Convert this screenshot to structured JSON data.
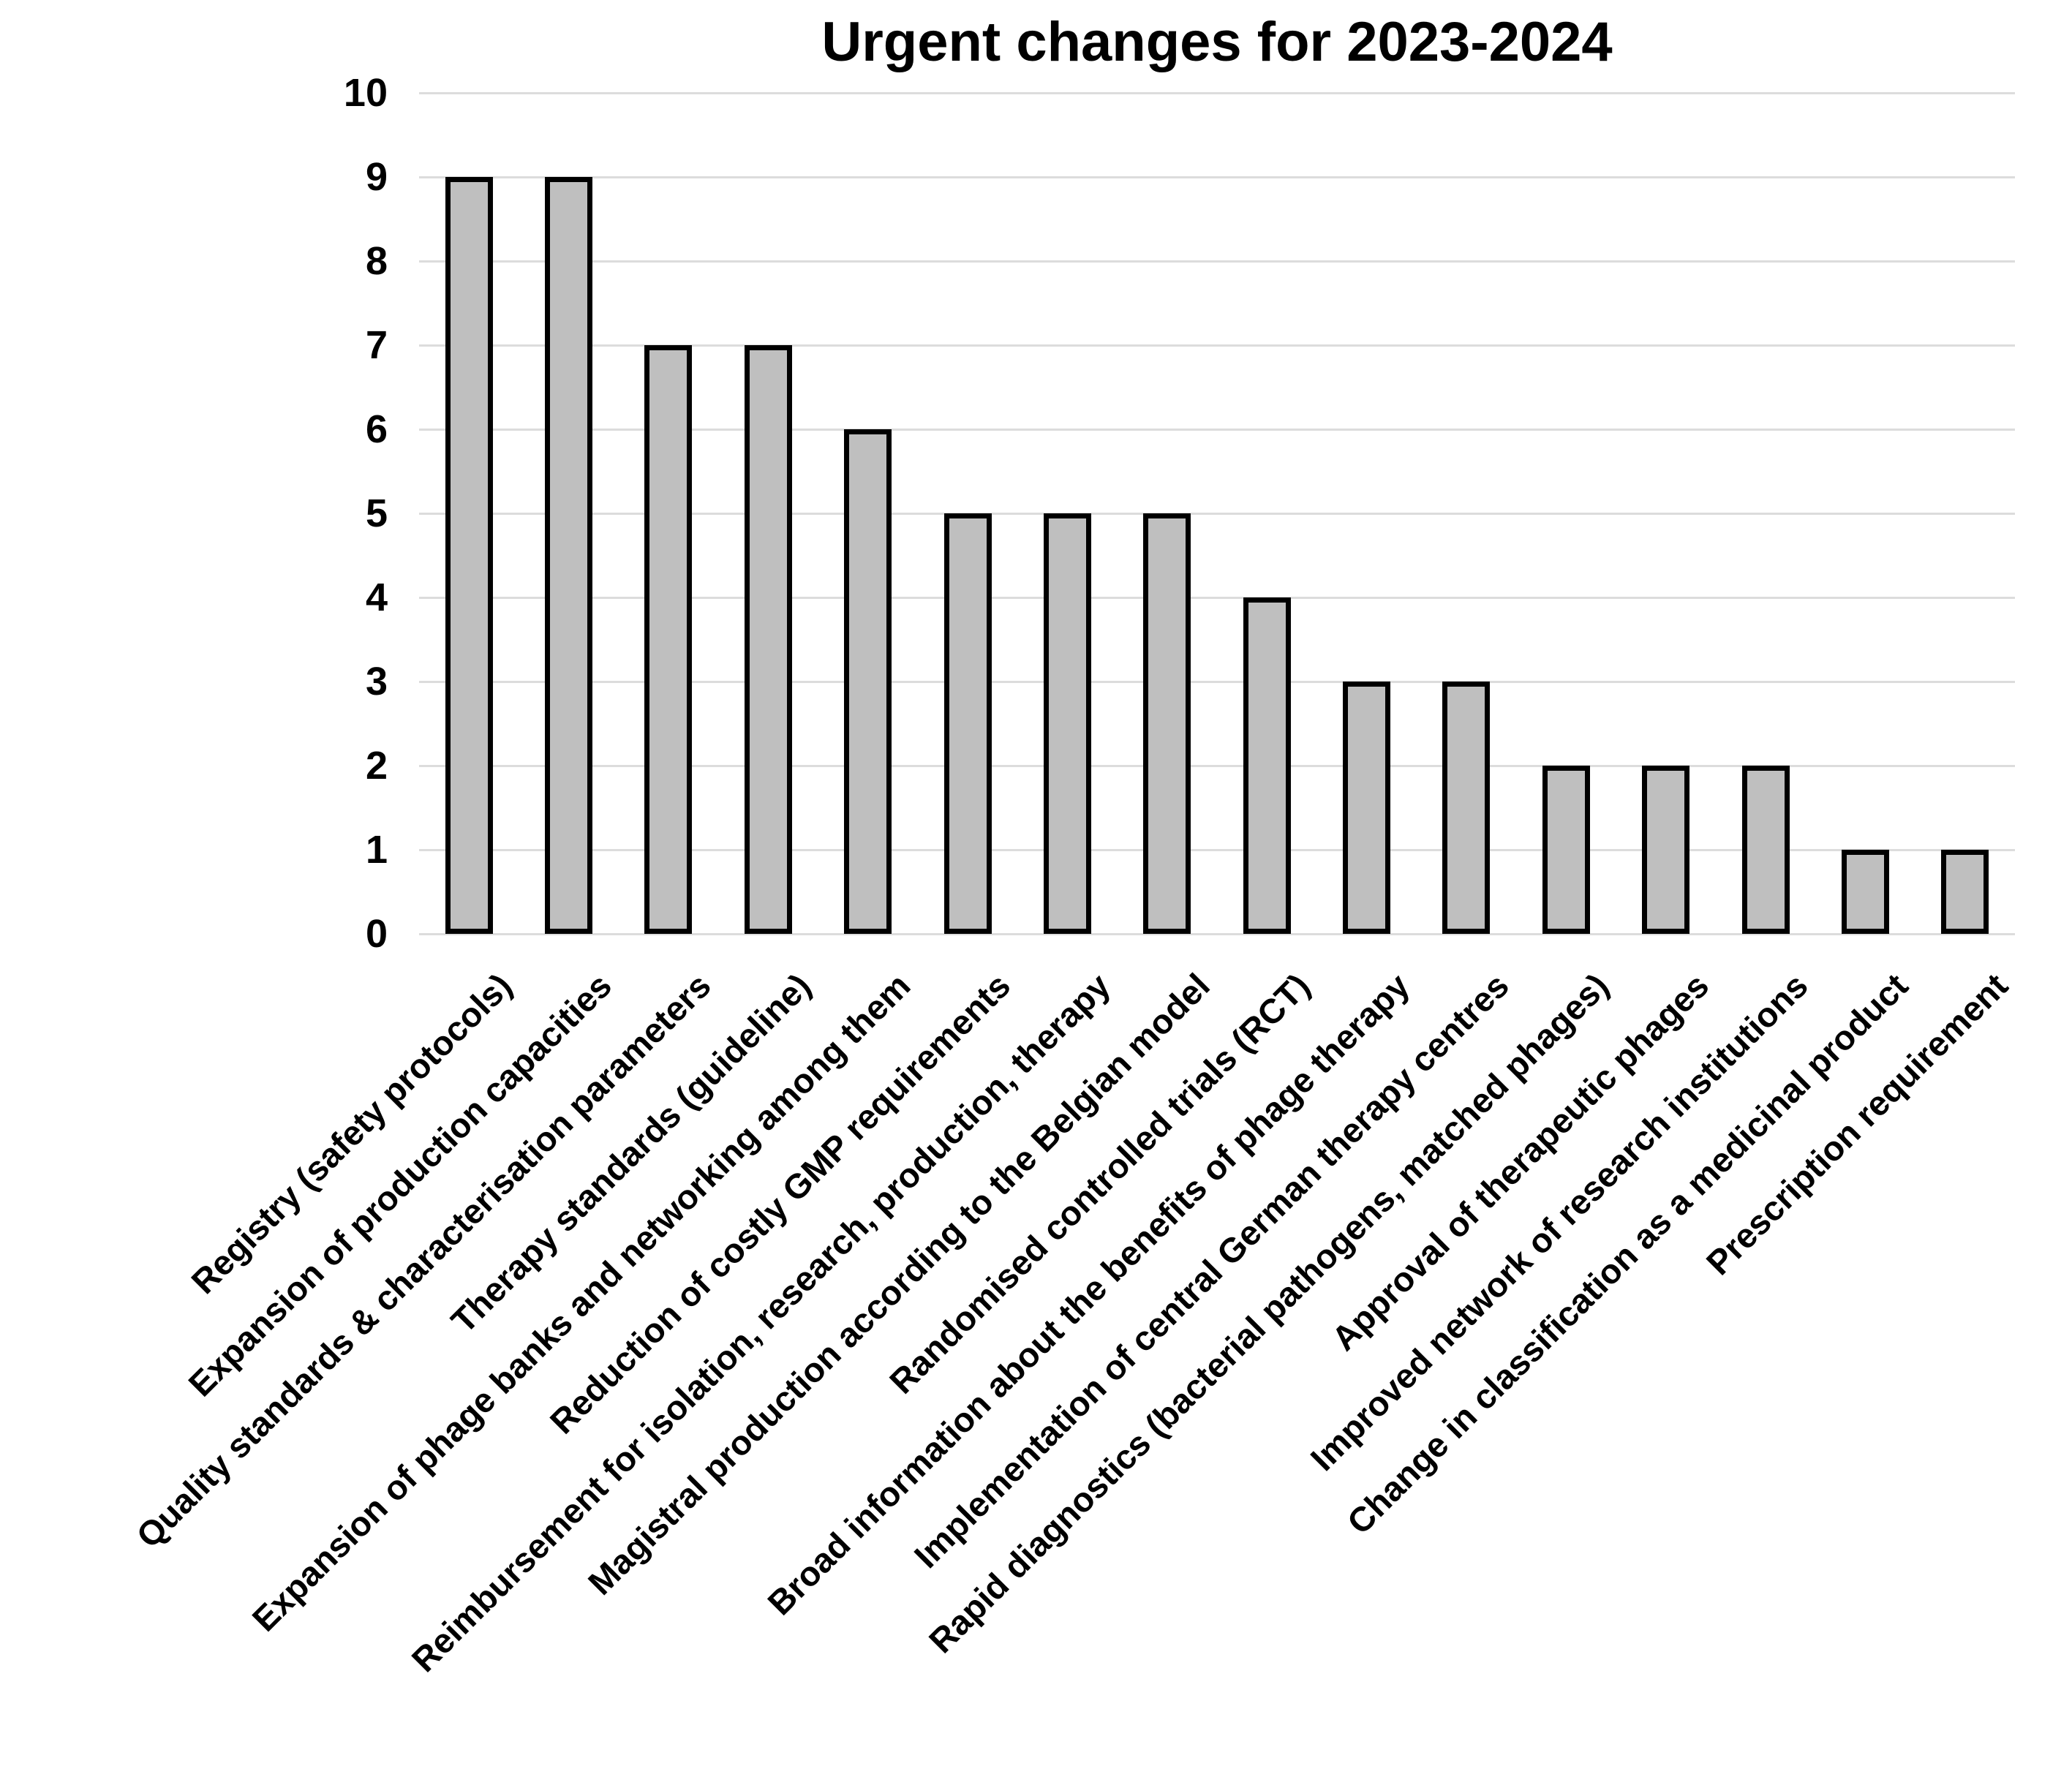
{
  "figure": {
    "title": "Urgent changes for 2023-2024"
  },
  "chart_data": {
    "type": "bar",
    "title": "Urgent changes for 2023-2024",
    "categories": [
      "Registry (safety protocols)",
      "Expansion of production capacities",
      "Quality standards & characterisation parameters",
      "Therapy standards (guideline)",
      "Expansion of phage banks and networking among them",
      "Reduction of costly GMP requirements",
      "Reimbursement for isolation, research, production, therapy",
      "Magistral production according to the Belgian model",
      "Randomised controlled trials (RCT)",
      "Broad information about the benefits of phage therapy",
      "Implementation of central German therapy centres",
      "Rapid diagnostics (bacterial pathogens, matched phages)",
      "Approval of therapeutic phages",
      "Improved network of research institutions",
      "Change in classification as a medicinal product",
      "Prescription requirement"
    ],
    "values": [
      9,
      9,
      7,
      7,
      6,
      5,
      5,
      5,
      4,
      3,
      3,
      2,
      2,
      2,
      1,
      1
    ],
    "xlabel": "",
    "ylabel": "",
    "ylim": [
      0,
      10
    ],
    "yticks": [
      0,
      1,
      2,
      3,
      4,
      5,
      6,
      7,
      8,
      9,
      10
    ],
    "grid": true,
    "legend": "none",
    "bar_fill": "#bfbfbf",
    "bar_border": "#000000",
    "gridline_color": "#dcdcdc",
    "text_color": "#000000",
    "background": "#ffffff"
  }
}
